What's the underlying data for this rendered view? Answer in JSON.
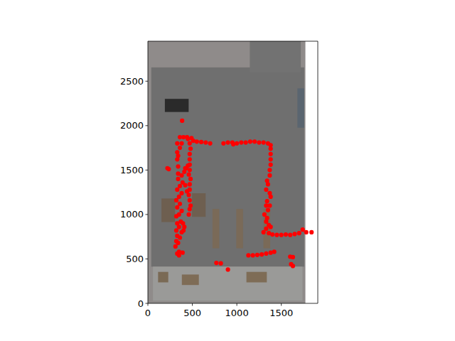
{
  "chart_data": {
    "type": "scatter",
    "color": "#ff0000",
    "marker": "circle",
    "xlim": [
      0,
      1910
    ],
    "ylim": [
      0,
      2950
    ],
    "xticks": [
      0,
      500,
      1000,
      1500
    ],
    "yticks": [
      0,
      500,
      1000,
      1500,
      2000,
      2500
    ],
    "x": [
      330,
      350,
      390,
      310,
      320,
      340,
      330,
      360,
      380,
      320,
      350,
      330,
      370,
      320,
      350,
      380,
      330,
      360,
      320,
      350,
      380,
      330,
      360,
      390,
      340,
      380,
      410,
      430,
      450,
      340,
      340,
      330,
      340,
      330,
      360,
      380,
      360,
      330,
      400,
      410,
      395,
      470,
      480,
      470,
      460,
      470,
      470,
      480,
      460,
      470,
      470,
      470,
      470,
      480,
      470,
      450,
      420,
      460,
      420,
      440,
      400,
      440,
      490,
      510,
      550,
      600,
      650,
      700,
      850,
      900,
      950,
      1000,
      1050,
      1100,
      1150,
      1200,
      1250,
      1300,
      1350,
      1380,
      960,
      1380,
      1380,
      1380,
      1380,
      1370,
      1370,
      1340,
      1350,
      1330,
      1370,
      1380,
      1340,
      1330,
      1350,
      1310,
      1340,
      1330,
      1360,
      1380,
      1330,
      1370,
      1360,
      1400,
      1450,
      1500,
      1550,
      1600,
      1650,
      1700,
      1740,
      1780,
      1840,
      1300,
      1130,
      1180,
      1230,
      1280,
      1330,
      1380,
      1420,
      385,
      235,
      220,
      1600,
      1630,
      1610,
      1630,
      770,
      820,
      900,
      350
    ],
    "y": [
      560,
      580,
      570,
      640,
      700,
      680,
      760,
      740,
      800,
      820,
      860,
      900,
      920,
      980,
      1000,
      1040,
      1080,
      1120,
      1160,
      1200,
      1240,
      1280,
      1320,
      1360,
      1400,
      1440,
      1480,
      1520,
      1550,
      1460,
      1540,
      1620,
      1660,
      1700,
      1750,
      1800,
      1870,
      1800,
      820,
      860,
      900,
      1060,
      1100,
      1160,
      1220,
      1280,
      1340,
      1400,
      1450,
      1500,
      1560,
      1620,
      1680,
      1740,
      1800,
      1850,
      1520,
      1000,
      1330,
      1260,
      1870,
      1870,
      1860,
      1830,
      1820,
      1815,
      1810,
      1800,
      1800,
      1810,
      1810,
      1800,
      1810,
      1810,
      1820,
      1820,
      1810,
      1810,
      1800,
      1780,
      1790,
      1740,
      1680,
      1620,
      1560,
      1500,
      1440,
      1380,
      1340,
      1280,
      1240,
      1200,
      1150,
      1100,
      1050,
      1000,
      960,
      920,
      880,
      860,
      840,
      1100,
      790,
      775,
      770,
      770,
      775,
      770,
      780,
      790,
      830,
      800,
      800,
      800,
      540,
      540,
      545,
      550,
      560,
      570,
      580,
      2055,
      1510,
      1520,
      525,
      520,
      440,
      420,
      455,
      450,
      380,
      540
    ]
  }
}
